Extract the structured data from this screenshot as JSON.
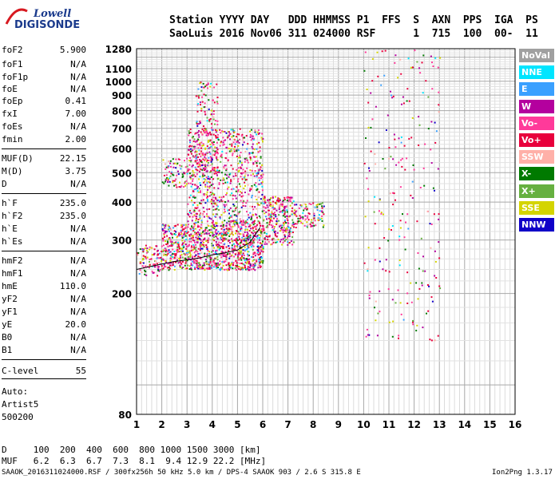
{
  "logo": {
    "line1": "Lowell",
    "line2": "DIGISONDE"
  },
  "header": {
    "row1": "Station YYYY DAY   DDD HHMMSS P1  FFS  S  AXN  PPS  IGA  PS",
    "row2": "SaoLuis 2016 Nov06 311 024000 RSF      1  715  100  00-  11"
  },
  "params": [
    {
      "name": "foF2",
      "value": "5.900"
    },
    {
      "name": "foF1",
      "value": "N/A"
    },
    {
      "name": "foF1p",
      "value": "N/A"
    },
    {
      "name": "foE",
      "value": "N/A"
    },
    {
      "name": "foEp",
      "value": "0.41"
    },
    {
      "name": "fxI",
      "value": "7.00"
    },
    {
      "name": "foEs",
      "value": "N/A"
    },
    {
      "name": "fmin",
      "value": "2.00"
    },
    {
      "name": "MUF(D)",
      "value": "22.15"
    },
    {
      "name": "M(D)",
      "value": "3.75"
    },
    {
      "name": "D",
      "value": "N/A"
    },
    {
      "name": "h`F",
      "value": "235.0"
    },
    {
      "name": "h`F2",
      "value": "235.0"
    },
    {
      "name": "h`E",
      "value": "N/A"
    },
    {
      "name": "h`Es",
      "value": "N/A"
    },
    {
      "name": "hmF2",
      "value": "N/A"
    },
    {
      "name": "hmF1",
      "value": "N/A"
    },
    {
      "name": "hmE",
      "value": "110.0"
    },
    {
      "name": "yF2",
      "value": "N/A"
    },
    {
      "name": "yF1",
      "value": "N/A"
    },
    {
      "name": "yE",
      "value": "20.0"
    },
    {
      "name": "B0",
      "value": "N/A"
    },
    {
      "name": "B1",
      "value": "N/A"
    }
  ],
  "clevel": {
    "name": "C-level",
    "value": "55"
  },
  "auto": [
    "Auto:",
    "Artist5",
    "500200"
  ],
  "legend": [
    {
      "label": "NoVal",
      "color": "#a0a0a0"
    },
    {
      "label": "NNE",
      "color": "#00e5ff"
    },
    {
      "label": "E",
      "color": "#3aa0ff"
    },
    {
      "label": "W",
      "color": "#b4009e"
    },
    {
      "label": "Vo-",
      "color": "#ff3a9a"
    },
    {
      "label": "Vo+",
      "color": "#e8003c"
    },
    {
      "label": "SSW",
      "color": "#ffb0a8"
    },
    {
      "label": "X-",
      "color": "#007a00"
    },
    {
      "label": "X+",
      "color": "#66b040"
    },
    {
      "label": "SSE",
      "color": "#d4d400"
    },
    {
      "label": "NNW",
      "color": "#1000c8"
    }
  ],
  "footer": {
    "d_row": "D     100  200  400  600  800 1000 1500 3000 [km]",
    "muf_row": "MUF   6.2  6.3  6.7  7.3  8.1  9.4 12.9 22.2 [MHz]",
    "file_info": "SAAOK_2016311024000.RSF / 300fx256h 50 kHz 5.0 km / DPS-4 SAAOK 903 / 2.6 S 315.8 E",
    "version": "Ion2Png 1.3.17"
  },
  "chart_data": {
    "type": "scatter",
    "title": "",
    "xlabel": "",
    "ylabel": "",
    "x_ticks": [
      1,
      2,
      3,
      4,
      5,
      6,
      7,
      8,
      9,
      10,
      11,
      12,
      13,
      14,
      15,
      16
    ],
    "y_ticks": [
      80,
      200,
      300,
      400,
      500,
      600,
      700,
      800,
      900,
      1000,
      1100,
      1280
    ],
    "xlim": [
      1,
      16
    ],
    "ylim": [
      80,
      1280
    ],
    "y_scale": "log",
    "grid": true,
    "trace": {
      "name": "",
      "x": [
        1.0,
        1.5,
        2.0,
        2.5,
        3.0,
        3.5,
        4.0,
        4.5,
        5.0,
        5.5,
        5.9
      ],
      "y": [
        240,
        245,
        250,
        255,
        258,
        262,
        268,
        272,
        278,
        295,
        330
      ]
    },
    "scatter_regions": [
      {
        "x": [
          1.0,
          2.0
        ],
        "y": [
          230,
          290
        ],
        "density": 0.5
      },
      {
        "x": [
          2.0,
          3.0
        ],
        "y": [
          240,
          340
        ],
        "density": 0.8
      },
      {
        "x": [
          3.0,
          6.0
        ],
        "y": [
          240,
          350
        ],
        "density": 0.9
      },
      {
        "x": [
          6.0,
          7.2
        ],
        "y": [
          290,
          420
        ],
        "density": 0.7
      },
      {
        "x": [
          7.2,
          8.4
        ],
        "y": [
          330,
          400
        ],
        "density": 0.5
      },
      {
        "x": [
          3.0,
          6.0
        ],
        "y": [
          350,
          700
        ],
        "density": 0.4
      },
      {
        "x": [
          3.3,
          4.2
        ],
        "y": [
          500,
          1000
        ],
        "density": 0.3
      },
      {
        "x": [
          2.0,
          3.0
        ],
        "y": [
          450,
          560
        ],
        "density": 0.4
      },
      {
        "x": [
          10.0,
          13.0
        ],
        "y": [
          140,
          1280
        ],
        "density": 0.04
      }
    ]
  }
}
